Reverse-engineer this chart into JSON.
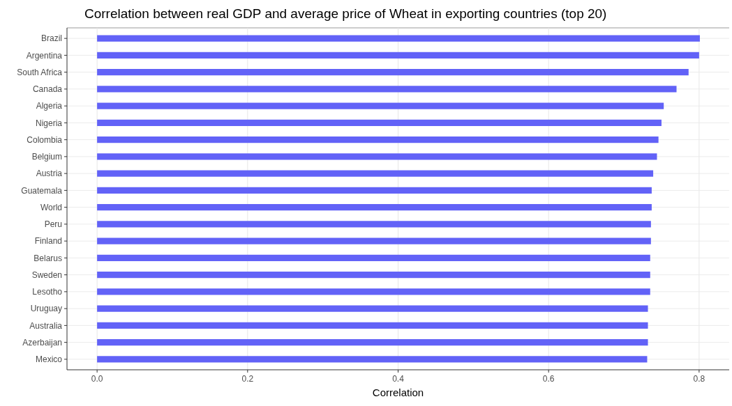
{
  "chart_data": {
    "type": "bar",
    "orientation": "horizontal",
    "title": "Correlation between real GDP and average price of Wheat in exporting countries (top 20)",
    "xlabel": "Correlation",
    "categories": [
      "Brazil",
      "Argentina",
      "South Africa",
      "Canada",
      "Algeria",
      "Nigeria",
      "Colombia",
      "Belgium",
      "Austria",
      "Guatemala",
      "World",
      "Peru",
      "Finland",
      "Belarus",
      "Sweden",
      "Lesotho",
      "Uruguay",
      "Australia",
      "Azerbaijan",
      "Mexico"
    ],
    "values": [
      0.801,
      0.8,
      0.786,
      0.77,
      0.753,
      0.75,
      0.746,
      0.744,
      0.739,
      0.737,
      0.737,
      0.736,
      0.736,
      0.735,
      0.735,
      0.735,
      0.732,
      0.732,
      0.732,
      0.731
    ],
    "color": "#6262f7",
    "xlim": [
      -0.04,
      0.84
    ],
    "xticks": [
      {
        "value": 0,
        "label": "0.0"
      },
      0.2,
      0.4,
      0.6,
      0.8
    ],
    "grid": true
  }
}
